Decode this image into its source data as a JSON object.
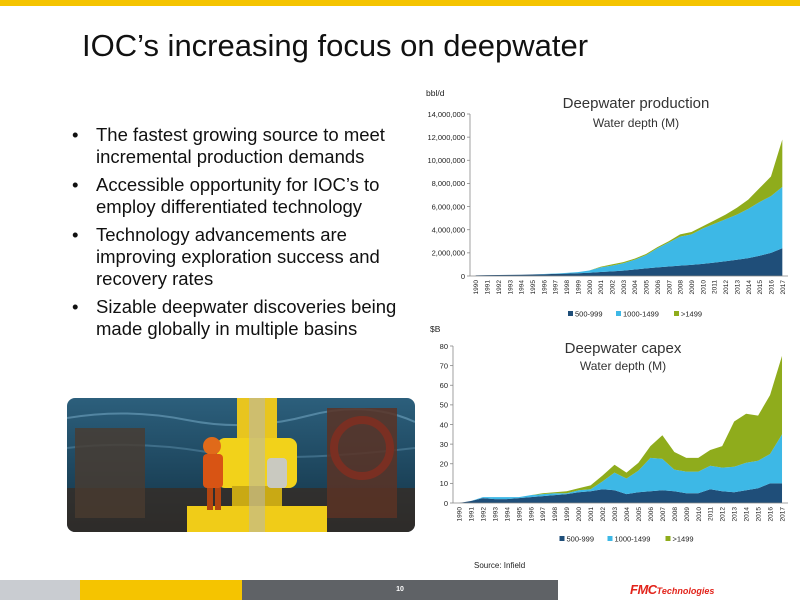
{
  "slide": {
    "title": "IOC’s increasing focus on deepwater",
    "bullets": [
      "The fastest growing source to meet incremental production demands",
      "Accessible opportunity for IOC’s to employ differentiated technology",
      "Technology advancements are improving exploration success and recovery rates",
      "Sizable deepwater discoveries being made globally in multiple basins"
    ],
    "source": "Source: Infield",
    "page_number": "10",
    "logo_text_1": "FMC",
    "logo_text_2": "Technologies",
    "colors": {
      "accent_yellow": "#f5c400",
      "footer_gray": "#5f6266",
      "footer_light": "#c9ccd1",
      "logo_red": "#e2231a"
    }
  },
  "chart_data": [
    {
      "type": "area",
      "stacked": true,
      "title": "Deepwater production",
      "subtitle": "Water depth (M)",
      "ylabel": "bbl/d",
      "xlabel": "",
      "ylim": [
        0,
        14000000
      ],
      "yticks": [
        0,
        2000000,
        4000000,
        6000000,
        8000000,
        10000000,
        12000000,
        14000000
      ],
      "ytick_labels": [
        "0",
        "2,000,000",
        "4,000,000",
        "6,000,000",
        "8,000,000",
        "10,000,000",
        "12,000,000",
        "14,000,000"
      ],
      "grid": false,
      "legend": "bottom",
      "categories": [
        "1990",
        "1991",
        "1992",
        "1993",
        "1994",
        "1995",
        "1996",
        "1997",
        "1998",
        "1999",
        "2000",
        "2001",
        "2002",
        "2003",
        "2004",
        "2005",
        "2006",
        "2007",
        "2008",
        "2009",
        "2010",
        "2011",
        "2012",
        "2013",
        "2014",
        "2015",
        "2016",
        "2017"
      ],
      "series": [
        {
          "name": "500-999",
          "color": "#1f4e79",
          "values": [
            50000,
            80000,
            90000,
            100000,
            110000,
            130000,
            150000,
            180000,
            210000,
            240000,
            280000,
            350000,
            400000,
            460000,
            560000,
            660000,
            740000,
            820000,
            900000,
            960000,
            1050000,
            1160000,
            1280000,
            1400000,
            1550000,
            1750000,
            2000000,
            2400000
          ]
        },
        {
          "name": "1000-1499",
          "color": "#3db8e6",
          "values": [
            0,
            0,
            0,
            0,
            0,
            0,
            20000,
            40000,
            60000,
            100000,
            200000,
            400000,
            500000,
            640000,
            840000,
            1140000,
            1660000,
            2080000,
            2500000,
            2640000,
            3050000,
            3340000,
            3620000,
            3900000,
            4250000,
            4650000,
            4900000,
            5300000
          ]
        },
        {
          "name": ">1499",
          "color": "#8fac1c",
          "values": [
            0,
            0,
            0,
            0,
            0,
            0,
            0,
            0,
            0,
            0,
            0,
            50000,
            100000,
            100000,
            100000,
            100000,
            100000,
            100000,
            200000,
            200000,
            200000,
            300000,
            400000,
            600000,
            800000,
            1200000,
            1700000,
            4100000
          ]
        }
      ]
    },
    {
      "type": "area",
      "stacked": true,
      "title": "Deepwater capex",
      "subtitle": "Water depth (M)",
      "ylabel": "$B",
      "xlabel": "",
      "ylim": [
        0,
        80
      ],
      "yticks": [
        0,
        10,
        20,
        30,
        40,
        50,
        60,
        70,
        80
      ],
      "ytick_labels": [
        "0",
        "10",
        "20",
        "30",
        "40",
        "50",
        "60",
        "70",
        "80"
      ],
      "grid": false,
      "legend": "bottom",
      "categories": [
        "1990",
        "1991",
        "1992",
        "1993",
        "1994",
        "1995",
        "1996",
        "1997",
        "1998",
        "1999",
        "2000",
        "2001",
        "2002",
        "2003",
        "2004",
        "2005",
        "2006",
        "2007",
        "2008",
        "2009",
        "2010",
        "2011",
        "2012",
        "2013",
        "2014",
        "2015",
        "2016",
        "2017"
      ],
      "series": [
        {
          "name": "500-999",
          "color": "#1f4e79",
          "values": [
            0,
            1,
            2.5,
            2,
            2,
            2.5,
            3,
            3.5,
            4,
            4.5,
            5.5,
            6,
            7,
            6.5,
            4.5,
            5.5,
            6,
            6.5,
            6,
            5,
            5,
            7,
            6,
            5.5,
            6.5,
            7.5,
            10,
            10
          ]
        },
        {
          "name": "1000-1499",
          "color": "#3db8e6",
          "values": [
            0,
            0,
            0.5,
            1,
            1,
            0.5,
            1,
            1,
            1,
            0.5,
            1,
            1,
            4,
            9,
            8,
            11,
            17,
            16,
            11,
            11,
            11,
            12,
            12,
            13,
            14,
            14,
            15,
            25
          ]
        },
        {
          "name": ">1499",
          "color": "#8fac1c",
          "values": [
            0,
            0,
            0,
            0,
            0,
            0,
            0,
            0.5,
            0.5,
            1,
            1,
            2,
            3,
            4,
            3,
            4,
            6,
            12,
            9,
            7,
            7,
            8,
            11,
            23,
            25,
            23,
            30,
            40
          ]
        }
      ]
    }
  ]
}
